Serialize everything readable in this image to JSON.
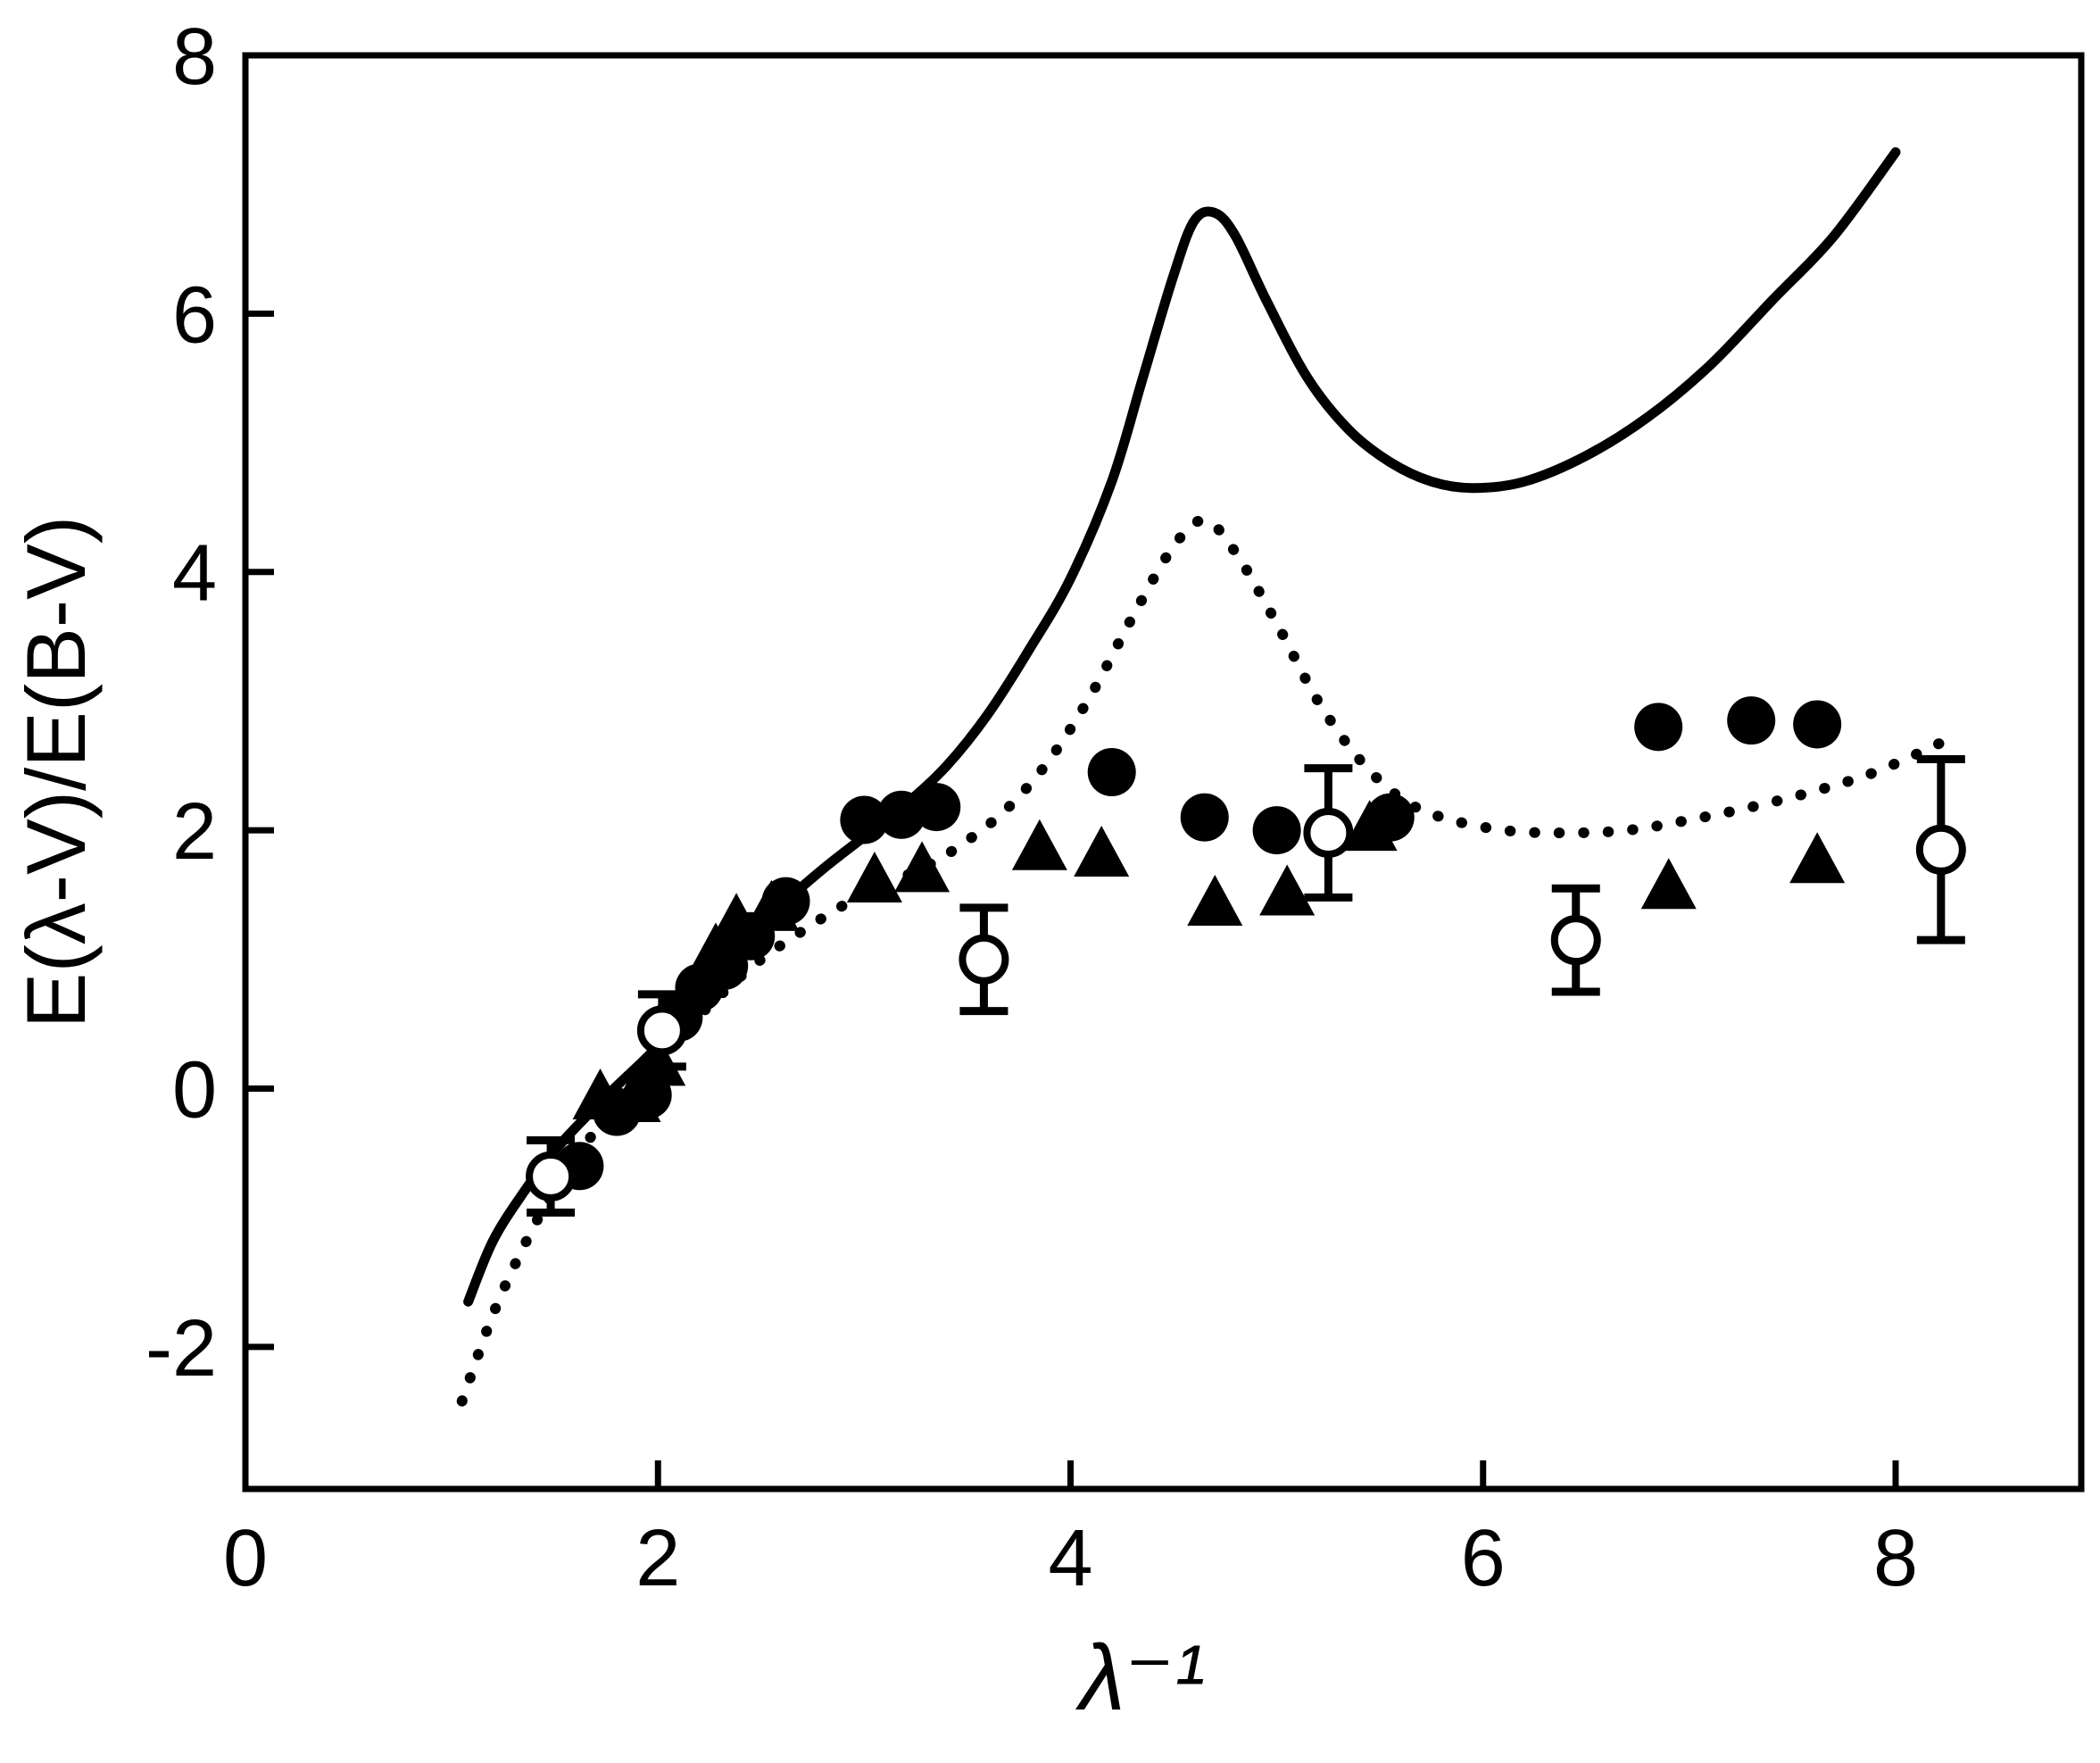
{
  "figure": {
    "background": "#ffffff",
    "ink_color": "#000000"
  },
  "chart_data": {
    "type": "line",
    "title": "",
    "xlabel": "λ⁻¹",
    "ylabel": "E(λ-V)/E(B-V)",
    "xlim": [
      0,
      8.9
    ],
    "ylim": [
      -3.1,
      8.0
    ],
    "x_ticks": [
      0,
      2,
      4,
      6,
      8
    ],
    "y_ticks": [
      -2,
      0,
      2,
      4,
      6,
      8
    ],
    "grid": false,
    "legend": "none",
    "series": [
      {
        "name": "solid-curve",
        "type": "line",
        "line_style": "solid",
        "color": "#000000",
        "points": [
          [
            1.08,
            -1.65
          ],
          [
            1.2,
            -1.18
          ],
          [
            1.35,
            -0.8
          ],
          [
            1.5,
            -0.48
          ],
          [
            1.65,
            -0.22
          ],
          [
            1.8,
            0.02
          ],
          [
            2.0,
            0.33
          ],
          [
            2.2,
            0.72
          ],
          [
            2.4,
            1.08
          ],
          [
            2.6,
            1.42
          ],
          [
            2.8,
            1.7
          ],
          [
            3.0,
            1.95
          ],
          [
            3.2,
            2.2
          ],
          [
            3.4,
            2.5
          ],
          [
            3.6,
            2.9
          ],
          [
            3.8,
            3.4
          ],
          [
            4.0,
            3.95
          ],
          [
            4.2,
            4.7
          ],
          [
            4.35,
            5.5
          ],
          [
            4.5,
            6.3
          ],
          [
            4.6,
            6.72
          ],
          [
            4.7,
            6.78
          ],
          [
            4.8,
            6.6
          ],
          [
            4.95,
            6.1
          ],
          [
            5.15,
            5.5
          ],
          [
            5.35,
            5.1
          ],
          [
            5.55,
            4.85
          ],
          [
            5.75,
            4.7
          ],
          [
            5.95,
            4.65
          ],
          [
            6.2,
            4.7
          ],
          [
            6.5,
            4.9
          ],
          [
            6.8,
            5.2
          ],
          [
            7.1,
            5.6
          ],
          [
            7.4,
            6.1
          ],
          [
            7.7,
            6.6
          ],
          [
            8.0,
            7.25
          ]
        ]
      },
      {
        "name": "dotted-curve",
        "type": "line",
        "line_style": "dotted",
        "color": "#000000",
        "points": [
          [
            1.05,
            -2.42
          ],
          [
            1.2,
            -1.75
          ],
          [
            1.35,
            -1.22
          ],
          [
            1.5,
            -0.78
          ],
          [
            1.7,
            -0.32
          ],
          [
            1.9,
            0.05
          ],
          [
            2.1,
            0.4
          ],
          [
            2.3,
            0.72
          ],
          [
            2.5,
            1.0
          ],
          [
            2.7,
            1.22
          ],
          [
            2.9,
            1.42
          ],
          [
            3.1,
            1.58
          ],
          [
            3.3,
            1.72
          ],
          [
            3.5,
            1.92
          ],
          [
            3.7,
            2.18
          ],
          [
            3.9,
            2.55
          ],
          [
            4.1,
            3.05
          ],
          [
            4.3,
            3.65
          ],
          [
            4.5,
            4.2
          ],
          [
            4.65,
            4.4
          ],
          [
            4.8,
            4.15
          ],
          [
            5.0,
            3.6
          ],
          [
            5.2,
            3.0
          ],
          [
            5.4,
            2.55
          ],
          [
            5.6,
            2.25
          ],
          [
            5.8,
            2.1
          ],
          [
            6.1,
            2.0
          ],
          [
            6.4,
            1.98
          ],
          [
            6.7,
            2.0
          ],
          [
            7.0,
            2.08
          ],
          [
            7.3,
            2.18
          ],
          [
            7.6,
            2.3
          ],
          [
            7.9,
            2.45
          ],
          [
            8.25,
            2.7
          ]
        ]
      },
      {
        "name": "filled-circles",
        "type": "scatter",
        "marker": "filled-circle",
        "color": "#000000",
        "points": [
          [
            1.62,
            -0.6
          ],
          [
            1.8,
            -0.18
          ],
          [
            1.95,
            -0.05
          ],
          [
            2.1,
            0.55
          ],
          [
            2.2,
            0.78
          ],
          [
            2.32,
            0.95
          ],
          [
            2.45,
            1.18
          ],
          [
            2.62,
            1.45
          ],
          [
            3.0,
            2.08
          ],
          [
            3.18,
            2.12
          ],
          [
            3.35,
            2.18
          ],
          [
            4.2,
            2.45
          ],
          [
            4.65,
            2.1
          ],
          [
            5.0,
            2.0
          ],
          [
            5.55,
            2.1
          ],
          [
            6.85,
            2.8
          ],
          [
            7.3,
            2.85
          ],
          [
            7.62,
            2.82
          ]
        ]
      },
      {
        "name": "filled-triangles",
        "type": "scatter",
        "marker": "filled-triangle",
        "color": "#000000",
        "points": [
          [
            1.72,
            -0.08
          ],
          [
            1.88,
            -0.1
          ],
          [
            2.0,
            0.18
          ],
          [
            2.28,
            1.05
          ],
          [
            2.38,
            1.28
          ],
          [
            2.55,
            1.38
          ],
          [
            3.05,
            1.6
          ],
          [
            3.28,
            1.68
          ],
          [
            3.85,
            1.85
          ],
          [
            4.15,
            1.8
          ],
          [
            4.7,
            1.42
          ],
          [
            5.05,
            1.5
          ],
          [
            5.45,
            2.0
          ],
          [
            6.9,
            1.55
          ],
          [
            7.62,
            1.75
          ]
        ]
      },
      {
        "name": "open-circles-with-errorbars",
        "type": "scatter",
        "marker": "open-circle",
        "error_bars": true,
        "color": "#000000",
        "points": [
          [
            1.48,
            -0.68,
            0.28
          ],
          [
            2.02,
            0.45,
            0.28
          ],
          [
            3.58,
            1.0,
            0.4
          ],
          [
            5.25,
            1.98,
            0.5
          ],
          [
            6.45,
            1.15,
            0.4
          ],
          [
            8.22,
            1.85,
            0.7
          ]
        ]
      }
    ]
  }
}
